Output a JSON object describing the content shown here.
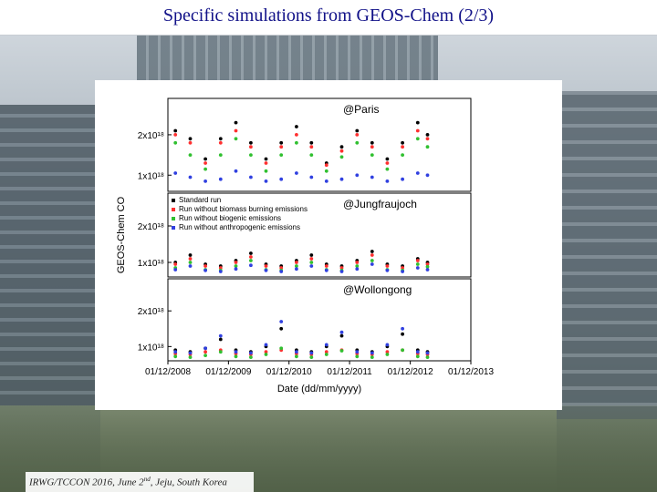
{
  "slide": {
    "title": "Specific simulations from GEOS-Chem (2/3)",
    "footer_prefix": "IRWG/TCCON 2016, June 2",
    "footer_sup": "nd",
    "footer_suffix": ", Jeju, South Korea"
  },
  "chart_data": {
    "type": "scatter",
    "xlabel": "Date (dd/mm/yyyy)",
    "x_ticks": [
      "01/12/2008",
      "01/12/2009",
      "01/12/2010",
      "01/12/2011",
      "01/12/2012",
      "01/12/2013"
    ],
    "xlim": [
      "2008-12-01",
      "2013-12-01"
    ],
    "ylabel": "GEOS-Chem CO",
    "colors": {
      "standard": "#000000",
      "no_biomass": "#ff3030",
      "no_biogenic": "#30c030",
      "no_anthropogenic": "#3040e0"
    },
    "legend": [
      "Standard run",
      "Run without biomass burning emissions",
      "Run without biogenic emissions",
      "Run without anthropogenic emissions"
    ],
    "panels": [
      {
        "name": "@Paris",
        "y_ticks": [
          "2x10¹⁸",
          "1x10¹⁸"
        ],
        "y_tick_values": [
          2e+18,
          1e+18
        ],
        "ylim": [
          6e+17,
          2.9e+18
        ],
        "series": [
          {
            "name": "Standard run",
            "x": [
              "2009-01",
              "2009-04",
              "2009-07",
              "2009-10",
              "2010-01",
              "2010-04",
              "2010-07",
              "2010-10",
              "2011-01",
              "2011-04",
              "2011-07",
              "2011-10",
              "2012-01",
              "2012-04",
              "2012-07",
              "2012-10",
              "2013-01",
              "2013-03"
            ],
            "y": [
              2.1e+18,
              1.9e+18,
              1.4e+18,
              1.9e+18,
              2.3e+18,
              1.8e+18,
              1.4e+18,
              1.8e+18,
              2.2e+18,
              1.8e+18,
              1.3e+18,
              1.7e+18,
              2.1e+18,
              1.8e+18,
              1.4e+18,
              1.8e+18,
              2.3e+18,
              2e+18
            ]
          },
          {
            "name": "Run without biomass burning emissions",
            "x": [
              "2009-01",
              "2009-04",
              "2009-07",
              "2009-10",
              "2010-01",
              "2010-04",
              "2010-07",
              "2010-10",
              "2011-01",
              "2011-04",
              "2011-07",
              "2011-10",
              "2012-01",
              "2012-04",
              "2012-07",
              "2012-10",
              "2013-01",
              "2013-03"
            ],
            "y": [
              2e+18,
              1.8e+18,
              1.3e+18,
              1.8e+18,
              2.1e+18,
              1.7e+18,
              1.3e+18,
              1.7e+18,
              2e+18,
              1.7e+18,
              1.25e+18,
              1.6e+18,
              2e+18,
              1.7e+18,
              1.3e+18,
              1.7e+18,
              2.1e+18,
              1.9e+18
            ]
          },
          {
            "name": "Run without biogenic emissions",
            "x": [
              "2009-01",
              "2009-04",
              "2009-07",
              "2009-10",
              "2010-01",
              "2010-04",
              "2010-07",
              "2010-10",
              "2011-01",
              "2011-04",
              "2011-07",
              "2011-10",
              "2012-01",
              "2012-04",
              "2012-07",
              "2012-10",
              "2013-01",
              "2013-03"
            ],
            "y": [
              1.8e+18,
              1.5e+18,
              1.15e+18,
              1.5e+18,
              1.9e+18,
              1.5e+18,
              1.1e+18,
              1.5e+18,
              1.8e+18,
              1.5e+18,
              1.1e+18,
              1.45e+18,
              1.8e+18,
              1.5e+18,
              1.15e+18,
              1.5e+18,
              1.9e+18,
              1.7e+18
            ]
          },
          {
            "name": "Run without anthropogenic emissions",
            "x": [
              "2009-01",
              "2009-04",
              "2009-07",
              "2009-10",
              "2010-01",
              "2010-04",
              "2010-07",
              "2010-10",
              "2011-01",
              "2011-04",
              "2011-07",
              "2011-10",
              "2012-01",
              "2012-04",
              "2012-07",
              "2012-10",
              "2013-01",
              "2013-03"
            ],
            "y": [
              1.05e+18,
              9.5e+17,
              8.5e+17,
              9e+17,
              1.1e+18,
              9.5e+17,
              8.5e+17,
              9e+17,
              1.05e+18,
              9.5e+17,
              8.5e+17,
              9e+17,
              1e+18,
              9.5e+17,
              8.5e+17,
              9e+17,
              1.05e+18,
              1e+18
            ]
          }
        ]
      },
      {
        "name": "@Jungfraujoch",
        "y_ticks": [
          "2x10¹⁸",
          "1x10¹⁸"
        ],
        "y_tick_values": [
          2e+18,
          1e+18
        ],
        "ylim": [
          6e+17,
          2.9e+18
        ],
        "series": [
          {
            "name": "Standard run",
            "x": [
              "2009-01",
              "2009-04",
              "2009-07",
              "2009-10",
              "2010-01",
              "2010-04",
              "2010-07",
              "2010-10",
              "2011-01",
              "2011-04",
              "2011-07",
              "2011-10",
              "2012-01",
              "2012-04",
              "2012-07",
              "2012-10",
              "2013-01",
              "2013-03"
            ],
            "y": [
              1e+18,
              1.2e+18,
              9.5e+17,
              9e+17,
              1.05e+18,
              1.25e+18,
              9.5e+17,
              9e+17,
              1.05e+18,
              1.2e+18,
              9.5e+17,
              9e+17,
              1.05e+18,
              1.3e+18,
              9.5e+17,
              9e+17,
              1.1e+18,
              1e+18
            ]
          },
          {
            "name": "Run without biomass burning emissions",
            "x": [
              "2009-01",
              "2009-04",
              "2009-07",
              "2009-10",
              "2010-01",
              "2010-04",
              "2010-07",
              "2010-10",
              "2011-01",
              "2011-04",
              "2011-07",
              "2011-10",
              "2012-01",
              "2012-04",
              "2012-07",
              "2012-10",
              "2013-01",
              "2013-03"
            ],
            "y": [
              9.5e+17,
              1.1e+18,
              9e+17,
              8.5e+17,
              1e+18,
              1.15e+18,
              9e+17,
              8.5e+17,
              1e+18,
              1.1e+18,
              9e+17,
              8.5e+17,
              1e+18,
              1.2e+18,
              9e+17,
              8.5e+17,
              1.05e+18,
              9.5e+17
            ]
          },
          {
            "name": "Run without biogenic emissions",
            "x": [
              "2009-01",
              "2009-04",
              "2009-07",
              "2009-10",
              "2010-01",
              "2010-04",
              "2010-07",
              "2010-10",
              "2011-01",
              "2011-04",
              "2011-07",
              "2011-10",
              "2012-01",
              "2012-04",
              "2012-07",
              "2012-10",
              "2013-01",
              "2013-03"
            ],
            "y": [
              8.5e+17,
              1e+18,
              8e+17,
              7.8e+17,
              9e+17,
              1.05e+18,
              8e+17,
              7.8e+17,
              9e+17,
              1e+18,
              8e+17,
              7.8e+17,
              9e+17,
              1.05e+18,
              8e+17,
              7.8e+17,
              9.5e+17,
              8.8e+17
            ]
          },
          {
            "name": "Run without anthropogenic emissions",
            "x": [
              "2009-01",
              "2009-04",
              "2009-07",
              "2009-10",
              "2010-01",
              "2010-04",
              "2010-07",
              "2010-10",
              "2011-01",
              "2011-04",
              "2011-07",
              "2011-10",
              "2012-01",
              "2012-04",
              "2012-07",
              "2012-10",
              "2013-01",
              "2013-03"
            ],
            "y": [
              8e+17,
              9e+17,
              7.8e+17,
              7.5e+17,
              8.2e+17,
              9.2e+17,
              7.8e+17,
              7.5e+17,
              8.2e+17,
              9e+17,
              7.8e+17,
              7.5e+17,
              8.2e+17,
              9.5e+17,
              7.8e+17,
              7.5e+17,
              8.5e+17,
              8e+17
            ]
          }
        ]
      },
      {
        "name": "@Wollongong",
        "y_ticks": [
          "2x10¹⁸",
          "1x10¹⁸"
        ],
        "y_tick_values": [
          2e+18,
          1e+18
        ],
        "ylim": [
          6e+17,
          2.9e+18
        ],
        "series": [
          {
            "name": "Standard run",
            "x": [
              "2009-01",
              "2009-04",
              "2009-07",
              "2009-10",
              "2010-01",
              "2010-04",
              "2010-07",
              "2010-10",
              "2011-01",
              "2011-04",
              "2011-07",
              "2011-10",
              "2012-01",
              "2012-04",
              "2012-07",
              "2012-10",
              "2013-01",
              "2013-03"
            ],
            "y": [
              9e+17,
              8.5e+17,
              9.5e+17,
              1.2e+18,
              9e+17,
              8.5e+17,
              1e+18,
              1.5e+18,
              9e+17,
              8.5e+17,
              1e+18,
              1.3e+18,
              9e+17,
              8.5e+17,
              1e+18,
              1.35e+18,
              9e+17,
              8.5e+17
            ]
          },
          {
            "name": "Run without biomass burning emissions",
            "x": [
              "2009-01",
              "2009-04",
              "2009-07",
              "2009-10",
              "2010-01",
              "2010-04",
              "2010-07",
              "2010-10",
              "2011-01",
              "2011-04",
              "2011-07",
              "2011-10",
              "2012-01",
              "2012-04",
              "2012-07",
              "2012-10",
              "2013-01",
              "2013-03"
            ],
            "y": [
              8e+17,
              7.8e+17,
              8.5e+17,
              9e+17,
              8e+17,
              7.8e+17,
              8.5e+17,
              9e+17,
              8e+17,
              7.8e+17,
              8.5e+17,
              9e+17,
              8e+17,
              7.8e+17,
              8.5e+17,
              9e+17,
              8e+17,
              7.8e+17
            ]
          },
          {
            "name": "Run without biogenic emissions",
            "x": [
              "2009-01",
              "2009-04",
              "2009-07",
              "2009-10",
              "2010-01",
              "2010-04",
              "2010-07",
              "2010-10",
              "2011-01",
              "2011-04",
              "2011-07",
              "2011-10",
              "2012-01",
              "2012-04",
              "2012-07",
              "2012-10",
              "2013-01",
              "2013-03"
            ],
            "y": [
              7.2e+17,
              7e+17,
              7.5e+17,
              8.5e+17,
              7.2e+17,
              7e+17,
              7.8e+17,
              9.5e+17,
              7.2e+17,
              7e+17,
              7.8e+17,
              8.8e+17,
              7.2e+17,
              7e+17,
              7.8e+17,
              9e+17,
              7.2e+17,
              7e+17
            ]
          },
          {
            "name": "Run without anthropogenic emissions",
            "x": [
              "2009-01",
              "2009-04",
              "2009-07",
              "2009-10",
              "2010-01",
              "2010-04",
              "2010-07",
              "2010-10",
              "2011-01",
              "2011-04",
              "2011-07",
              "2011-10",
              "2012-01",
              "2012-04",
              "2012-07",
              "2012-10",
              "2013-01",
              "2013-03"
            ],
            "y": [
              8.5e+17,
              8.2e+17,
              9.5e+17,
              1.3e+18,
              8.5e+17,
              8.2e+17,
              1.05e+18,
              1.7e+18,
              8.5e+17,
              8.2e+17,
              1.05e+18,
              1.4e+18,
              8.5e+17,
              8.2e+17,
              1.05e+18,
              1.5e+18,
              8.5e+17,
              8.2e+17
            ]
          }
        ]
      }
    ]
  }
}
